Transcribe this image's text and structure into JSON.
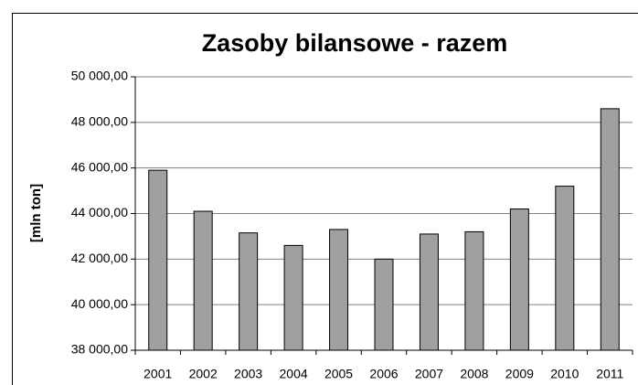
{
  "chart_data": {
    "type": "bar",
    "title": "Zasoby bilansowe - razem",
    "y_label": "[mln ton]",
    "categories": [
      "2001",
      "2002",
      "2003",
      "2004",
      "2005",
      "2006",
      "2007",
      "2008",
      "2009",
      "2010",
      "2011"
    ],
    "values": [
      45900,
      44100,
      43150,
      42600,
      43300,
      42000,
      43100,
      43200,
      44200,
      45200,
      48600
    ],
    "color": "#a0a0a0",
    "ylim": [
      38000,
      50000
    ],
    "yticks": [
      {
        "value": 38000,
        "label": "38 000,00"
      },
      {
        "value": 40000,
        "label": "40 000,00"
      },
      {
        "value": 42000,
        "label": "42 000,00"
      },
      {
        "value": 44000,
        "label": "44 000,00"
      },
      {
        "value": 46000,
        "label": "46 000,00"
      },
      {
        "value": 48000,
        "label": "48 000,00"
      },
      {
        "value": 50000,
        "label": "50 000,00"
      }
    ],
    "grid": true
  }
}
